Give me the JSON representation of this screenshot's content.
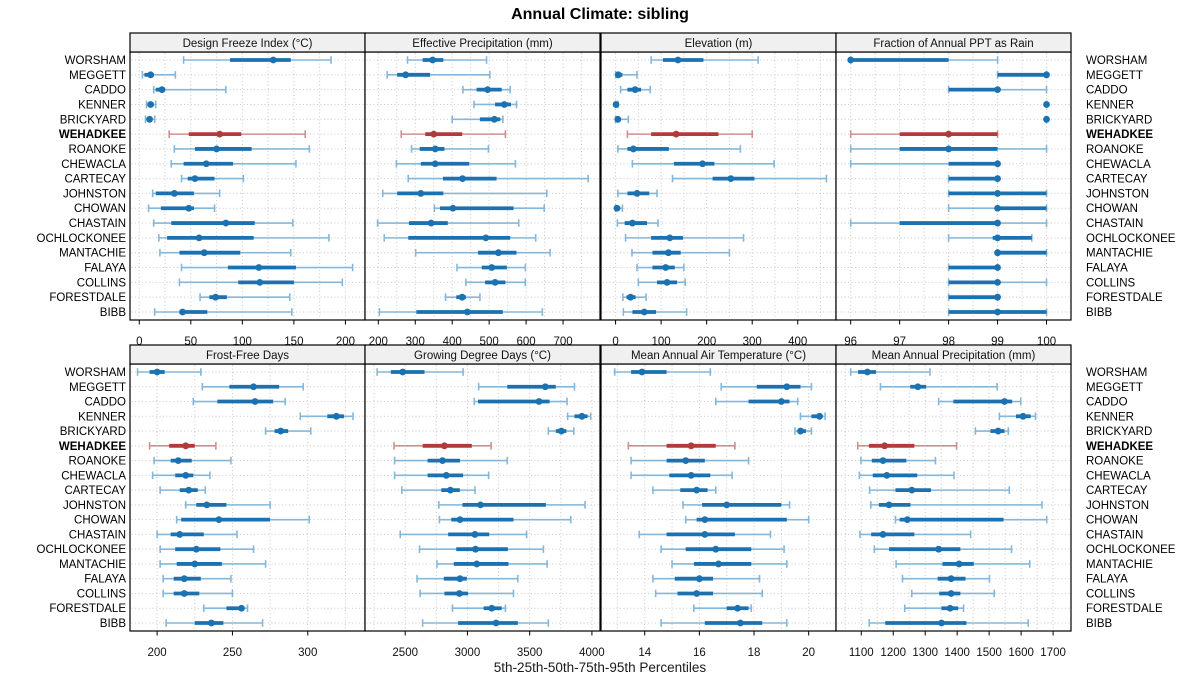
{
  "title": "Annual Climate: sibling",
  "xlabel": "5th-25th-50th-75th-95th Percentiles",
  "chart_data": {
    "type": "dot-interval-trellis",
    "percentiles": [
      "5th",
      "25th",
      "50th",
      "75th",
      "95th"
    ],
    "legend_position": "none",
    "grid": "dotted",
    "sites": [
      "WORSHAM",
      "MEGGETT",
      "CADDO",
      "KENNER",
      "BRICKYARD",
      "WEHADKEE",
      "ROANOKE",
      "CHEWACLA",
      "CARTECAY",
      "JOHNSTON",
      "CHOWAN",
      "CHASTAIN",
      "OCHLOCKONEE",
      "MANTACHIE",
      "FALAYA",
      "COLLINS",
      "FORESTDALE",
      "BIBB"
    ],
    "highlight_site": "WEHADKEE",
    "colors": {
      "normal": "#1c72b0",
      "normal_light": "#85b7da",
      "highlight": "#b23a3a",
      "highlight_light": "#d08f8f",
      "grid": "#c9c9c9",
      "strip_bg": "#f0f0f0",
      "panel_bg": "#ffffff",
      "border": "#000000"
    },
    "panels": [
      {
        "title": "Design Freeze Index (°C)",
        "xlim": [
          -9,
          219
        ],
        "ticks": [
          0,
          50,
          100,
          150,
          200
        ],
        "values": [
          [
            43,
            88,
            130,
            147,
            186
          ],
          [
            3,
            5,
            11,
            14,
            35
          ],
          [
            14,
            16,
            22,
            25,
            84
          ],
          [
            7,
            9,
            11,
            14,
            16
          ],
          [
            6,
            8,
            10,
            12,
            15
          ],
          [
            29,
            48,
            78,
            99,
            161
          ],
          [
            34,
            54,
            75,
            109,
            165
          ],
          [
            31,
            43,
            65,
            91,
            152
          ],
          [
            41,
            47,
            54,
            73,
            101
          ],
          [
            13,
            16,
            34,
            53,
            78
          ],
          [
            9,
            21,
            48,
            53,
            73
          ],
          [
            14,
            31,
            84,
            112,
            149
          ],
          [
            19,
            27,
            58,
            111,
            184
          ],
          [
            20,
            39,
            63,
            98,
            147
          ],
          [
            41,
            86,
            116,
            152,
            207
          ],
          [
            39,
            96,
            117,
            150,
            197
          ],
          [
            59,
            68,
            74,
            85,
            146
          ],
          [
            15,
            39,
            42,
            66,
            148
          ]
        ]
      },
      {
        "title": "Effective Precipitation (mm)",
        "xlim": [
          164,
          800
        ],
        "ticks": [
          200,
          300,
          400,
          500,
          600,
          700
        ],
        "values": [
          [
            279,
            320,
            347,
            376,
            493
          ],
          [
            224,
            251,
            274,
            340,
            502
          ],
          [
            429,
            466,
            496,
            534,
            557
          ],
          [
            459,
            516,
            541,
            559,
            574
          ],
          [
            400,
            475,
            514,
            530,
            537
          ],
          [
            262,
            327,
            350,
            427,
            544
          ],
          [
            290,
            312,
            354,
            379,
            498
          ],
          [
            249,
            315,
            354,
            446,
            571
          ],
          [
            281,
            375,
            428,
            520,
            768
          ],
          [
            212,
            251,
            315,
            376,
            656
          ],
          [
            352,
            367,
            402,
            566,
            649
          ],
          [
            198,
            283,
            343,
            388,
            580
          ],
          [
            216,
            281,
            491,
            557,
            626
          ],
          [
            301,
            470,
            525,
            574,
            665
          ],
          [
            413,
            480,
            507,
            548,
            598
          ],
          [
            437,
            489,
            516,
            544,
            598
          ],
          [
            382,
            411,
            427,
            437,
            475
          ],
          [
            203,
            303,
            441,
            537,
            644
          ]
        ]
      },
      {
        "title": "Elevation (m)",
        "xlim": [
          -32,
          484
        ],
        "ticks": [
          0,
          100,
          200,
          300,
          400
        ],
        "values": [
          [
            78,
            104,
            137,
            193,
            313
          ],
          [
            0,
            1,
            6,
            15,
            47
          ],
          [
            11,
            26,
            43,
            56,
            76
          ],
          [
            0,
            0,
            1,
            2,
            5
          ],
          [
            0,
            2,
            5,
            11,
            28
          ],
          [
            26,
            78,
            133,
            226,
            300
          ],
          [
            5,
            26,
            39,
            117,
            274
          ],
          [
            37,
            128,
            191,
            217,
            348
          ],
          [
            125,
            213,
            253,
            305,
            463
          ],
          [
            5,
            26,
            47,
            74,
            91
          ],
          [
            0,
            1,
            3,
            10,
            15
          ],
          [
            4,
            20,
            37,
            69,
            93
          ],
          [
            22,
            78,
            119,
            148,
            281
          ],
          [
            36,
            81,
            116,
            143,
            250
          ],
          [
            47,
            81,
            110,
            130,
            150
          ],
          [
            50,
            91,
            113,
            135,
            153
          ],
          [
            16,
            24,
            33,
            44,
            67
          ],
          [
            17,
            37,
            63,
            89,
            156
          ]
        ]
      },
      {
        "title": "Fraction of Annual PPT as Rain",
        "xlim": [
          95.7,
          100.5
        ],
        "ticks": [
          96,
          97,
          98,
          99,
          100
        ],
        "values": [
          [
            96,
            96,
            96,
            98,
            99
          ],
          [
            99,
            99,
            100,
            100,
            100
          ],
          [
            98,
            98,
            99,
            99,
            100
          ],
          [
            100,
            100,
            100,
            100,
            100
          ],
          [
            100,
            100,
            100,
            100,
            100
          ],
          [
            96,
            97,
            98,
            99,
            99
          ],
          [
            96,
            97,
            98,
            99,
            100
          ],
          [
            96,
            98,
            99,
            99,
            99
          ],
          [
            98,
            98,
            99,
            99,
            99
          ],
          [
            98,
            98,
            99,
            100,
            100
          ],
          [
            98,
            99,
            99,
            100,
            100
          ],
          [
            96,
            97,
            99,
            99,
            100
          ],
          [
            98,
            98.9,
            99,
            99.7,
            99.7
          ],
          [
            99,
            99,
            99,
            100,
            100
          ],
          [
            98,
            98,
            99,
            99,
            99
          ],
          [
            98,
            98,
            99,
            99,
            100
          ],
          [
            98,
            98,
            99,
            99,
            99
          ],
          [
            98,
            98,
            99,
            100,
            100
          ]
        ]
      },
      {
        "title": "Frost-Free Days",
        "xlim": [
          182,
          338
        ],
        "ticks": [
          200,
          250,
          300
        ],
        "values": [
          [
            187,
            195,
            200,
            205,
            229
          ],
          [
            230,
            248,
            264,
            281,
            297
          ],
          [
            224,
            240,
            265,
            277,
            285
          ],
          [
            295,
            313,
            319,
            324,
            330
          ],
          [
            272,
            278,
            282,
            287,
            302
          ],
          [
            195,
            208,
            219,
            225,
            239
          ],
          [
            198,
            209,
            214,
            223,
            249
          ],
          [
            197,
            212,
            219,
            224,
            235
          ],
          [
            202,
            215,
            221,
            227,
            232
          ],
          [
            219,
            226,
            233,
            246,
            275
          ],
          [
            213,
            216,
            241,
            275,
            301
          ],
          [
            200,
            209,
            215,
            231,
            253
          ],
          [
            202,
            212,
            226,
            242,
            264
          ],
          [
            202,
            213,
            225,
            243,
            272
          ],
          [
            204,
            211,
            218,
            229,
            249
          ],
          [
            204,
            211,
            218,
            228,
            250
          ],
          [
            231,
            246,
            256,
            258,
            260
          ],
          [
            206,
            225,
            236,
            244,
            270
          ]
        ]
      },
      {
        "title": "Growing Degree Days (°C)",
        "xlim": [
          2177,
          4065
        ],
        "ticks": [
          2500,
          3000,
          3500,
          4000
        ],
        "values": [
          [
            2275,
            2385,
            2480,
            2655,
            2965
          ],
          [
            3090,
            3320,
            3625,
            3710,
            3860
          ],
          [
            3055,
            3085,
            3575,
            3660,
            3800
          ],
          [
            3805,
            3860,
            3920,
            3965,
            3990
          ],
          [
            3650,
            3710,
            3755,
            3795,
            3855
          ],
          [
            2410,
            2640,
            2815,
            3035,
            3190
          ],
          [
            2415,
            2680,
            2800,
            2940,
            3320
          ],
          [
            2415,
            2680,
            2830,
            2965,
            3170
          ],
          [
            2473,
            2790,
            2863,
            2939,
            3061
          ],
          [
            2770,
            2960,
            3105,
            3630,
            3945
          ],
          [
            2775,
            2870,
            2940,
            3370,
            3830
          ],
          [
            2460,
            2845,
            3060,
            3175,
            3475
          ],
          [
            2615,
            2910,
            3065,
            3325,
            3610
          ],
          [
            2755,
            2890,
            3075,
            3330,
            3640
          ],
          [
            2595,
            2810,
            2940,
            2995,
            3405
          ],
          [
            2620,
            2815,
            2935,
            3005,
            3370
          ],
          [
            2880,
            3130,
            3195,
            3275,
            3305
          ],
          [
            2640,
            2925,
            3230,
            3405,
            3650
          ]
        ]
      },
      {
        "title": "Mean Annual Air Temperature (°C)",
        "xlim": [
          12.4,
          21.0
        ],
        "ticks": [
          14,
          16,
          18,
          20
        ],
        "values": [
          [
            12.9,
            13.5,
            13.9,
            14.8,
            16.4
          ],
          [
            16.8,
            18.1,
            19.2,
            19.7,
            20.1
          ],
          [
            16.6,
            17.8,
            19.0,
            19.3,
            19.6
          ],
          [
            19.7,
            20.1,
            20.4,
            20.5,
            20.6
          ],
          [
            19.5,
            19.6,
            19.7,
            19.9,
            20.1
          ],
          [
            13.4,
            14.8,
            15.7,
            16.6,
            17.3
          ],
          [
            13.5,
            14.8,
            15.5,
            16.2,
            17.8
          ],
          [
            13.5,
            14.9,
            15.7,
            16.4,
            17.2
          ],
          [
            14.3,
            15.3,
            15.9,
            16.3,
            16.6
          ],
          [
            15.4,
            16.1,
            17.0,
            19.0,
            19.3
          ],
          [
            15.5,
            15.9,
            16.2,
            19.2,
            20.0
          ],
          [
            13.8,
            14.8,
            16.2,
            17.3,
            18.6
          ],
          [
            14.6,
            15.5,
            16.6,
            17.9,
            19.1
          ],
          [
            15.0,
            15.8,
            16.7,
            17.9,
            19.2
          ],
          [
            14.3,
            15.1,
            16.0,
            16.5,
            18.2
          ],
          [
            14.4,
            15.2,
            15.9,
            16.5,
            18.3
          ],
          [
            15.8,
            17.0,
            17.4,
            17.8,
            17.9
          ],
          [
            14.6,
            16.2,
            17.5,
            18.3,
            19.2
          ]
        ]
      },
      {
        "title": "Mean Annual Precipitation (mm)",
        "xlim": [
          1021,
          1756
        ],
        "ticks": [
          1100,
          1200,
          1300,
          1400,
          1500,
          1600,
          1700
        ],
        "values": [
          [
            1067,
            1090,
            1119,
            1146,
            1315
          ],
          [
            1160,
            1253,
            1277,
            1303,
            1525
          ],
          [
            1342,
            1388,
            1548,
            1572,
            1599
          ],
          [
            1532,
            1584,
            1606,
            1630,
            1645
          ],
          [
            1457,
            1504,
            1528,
            1548,
            1560
          ],
          [
            1089,
            1124,
            1173,
            1266,
            1398
          ],
          [
            1099,
            1133,
            1168,
            1241,
            1332
          ],
          [
            1094,
            1136,
            1180,
            1275,
            1390
          ],
          [
            1126,
            1207,
            1258,
            1318,
            1563
          ],
          [
            1130,
            1155,
            1187,
            1254,
            1665
          ],
          [
            1207,
            1220,
            1244,
            1545,
            1680
          ],
          [
            1096,
            1131,
            1168,
            1266,
            1442
          ],
          [
            1141,
            1187,
            1342,
            1410,
            1570
          ],
          [
            1209,
            1354,
            1406,
            1452,
            1627
          ],
          [
            1229,
            1339,
            1381,
            1426,
            1501
          ],
          [
            1258,
            1344,
            1381,
            1410,
            1516
          ],
          [
            1236,
            1351,
            1378,
            1403,
            1420
          ],
          [
            1125,
            1175,
            1351,
            1429,
            1622
          ]
        ]
      }
    ]
  }
}
